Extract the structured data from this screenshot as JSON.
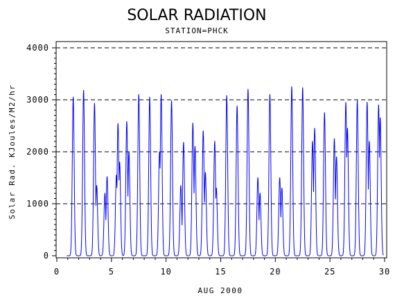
{
  "chart_data": {
    "type": "line",
    "title": "SOLAR RADIATION",
    "subtitle": "STATION=PHCK",
    "xlabel": "AUG 2000",
    "ylabel": "Solar Rad. KJoules/M2/hr",
    "xlim": [
      0,
      30
    ],
    "ylim": [
      0,
      4000
    ],
    "x_ticks": [
      0,
      5,
      10,
      15,
      20,
      25,
      30
    ],
    "y_ticks": [
      0,
      1000,
      2000,
      3000,
      4000
    ],
    "grid": "dashed horizontal at major y ticks",
    "line_color": "#0000ff",
    "daily_peaks": [
      {
        "day": 1,
        "peaks": [
          [
            1.5,
            3050
          ]
        ]
      },
      {
        "day": 2,
        "peaks": [
          [
            2.45,
            3180
          ]
        ]
      },
      {
        "day": 3,
        "peaks": [
          [
            3.45,
            2930
          ],
          [
            3.65,
            1350
          ]
        ]
      },
      {
        "day": 4,
        "peaks": [
          [
            4.4,
            1200
          ],
          [
            4.6,
            1520
          ]
        ]
      },
      {
        "day": 5,
        "peaks": [
          [
            5.45,
            1550
          ],
          [
            5.6,
            2540
          ],
          [
            5.75,
            1800
          ]
        ]
      },
      {
        "day": 6,
        "peaks": [
          [
            6.4,
            2580
          ],
          [
            6.6,
            2000
          ]
        ]
      },
      {
        "day": 7,
        "peaks": [
          [
            7.5,
            3100
          ]
        ]
      },
      {
        "day": 8,
        "peaks": [
          [
            8.5,
            3050
          ]
        ]
      },
      {
        "day": 9,
        "peaks": [
          [
            9.4,
            2000
          ],
          [
            9.55,
            3100
          ]
        ]
      },
      {
        "day": 10,
        "peaks": [
          [
            10.5,
            2980
          ]
        ]
      },
      {
        "day": 11,
        "peaks": [
          [
            11.35,
            1350
          ],
          [
            11.6,
            2180
          ]
        ]
      },
      {
        "day": 12,
        "peaks": [
          [
            12.45,
            2550
          ],
          [
            12.65,
            2100
          ]
        ]
      },
      {
        "day": 13,
        "peaks": [
          [
            13.4,
            2400
          ],
          [
            13.6,
            1600
          ]
        ]
      },
      {
        "day": 14,
        "peaks": [
          [
            14.45,
            2200
          ],
          [
            14.6,
            1300
          ]
        ]
      },
      {
        "day": 15,
        "peaks": [
          [
            15.55,
            3080
          ]
        ]
      },
      {
        "day": 16,
        "peaks": [
          [
            16.5,
            2880
          ]
        ]
      },
      {
        "day": 17,
        "peaks": [
          [
            17.5,
            3200
          ]
        ]
      },
      {
        "day": 18,
        "peaks": [
          [
            18.4,
            1500
          ],
          [
            18.6,
            1200
          ]
        ]
      },
      {
        "day": 19,
        "peaks": [
          [
            19.5,
            3100
          ]
        ]
      },
      {
        "day": 20,
        "peaks": [
          [
            20.4,
            1500
          ],
          [
            20.6,
            1300
          ]
        ]
      },
      {
        "day": 21,
        "peaks": [
          [
            21.5,
            3250
          ]
        ]
      },
      {
        "day": 22,
        "peaks": [
          [
            22.5,
            3230
          ]
        ]
      },
      {
        "day": 23,
        "peaks": [
          [
            23.4,
            2200
          ],
          [
            23.6,
            2450
          ]
        ]
      },
      {
        "day": 24,
        "peaks": [
          [
            24.5,
            2750
          ]
        ]
      },
      {
        "day": 25,
        "peaks": [
          [
            25.4,
            2250
          ],
          [
            25.6,
            1900
          ]
        ]
      },
      {
        "day": 26,
        "peaks": [
          [
            26.45,
            2950
          ],
          [
            26.6,
            2450
          ]
        ]
      },
      {
        "day": 27,
        "peaks": [
          [
            27.5,
            2980
          ]
        ]
      },
      {
        "day": 28,
        "peaks": [
          [
            28.4,
            2950
          ],
          [
            28.6,
            2200
          ]
        ]
      },
      {
        "day": 29,
        "peaks": [
          [
            29.45,
            2900
          ],
          [
            29.6,
            2650
          ]
        ]
      }
    ]
  }
}
